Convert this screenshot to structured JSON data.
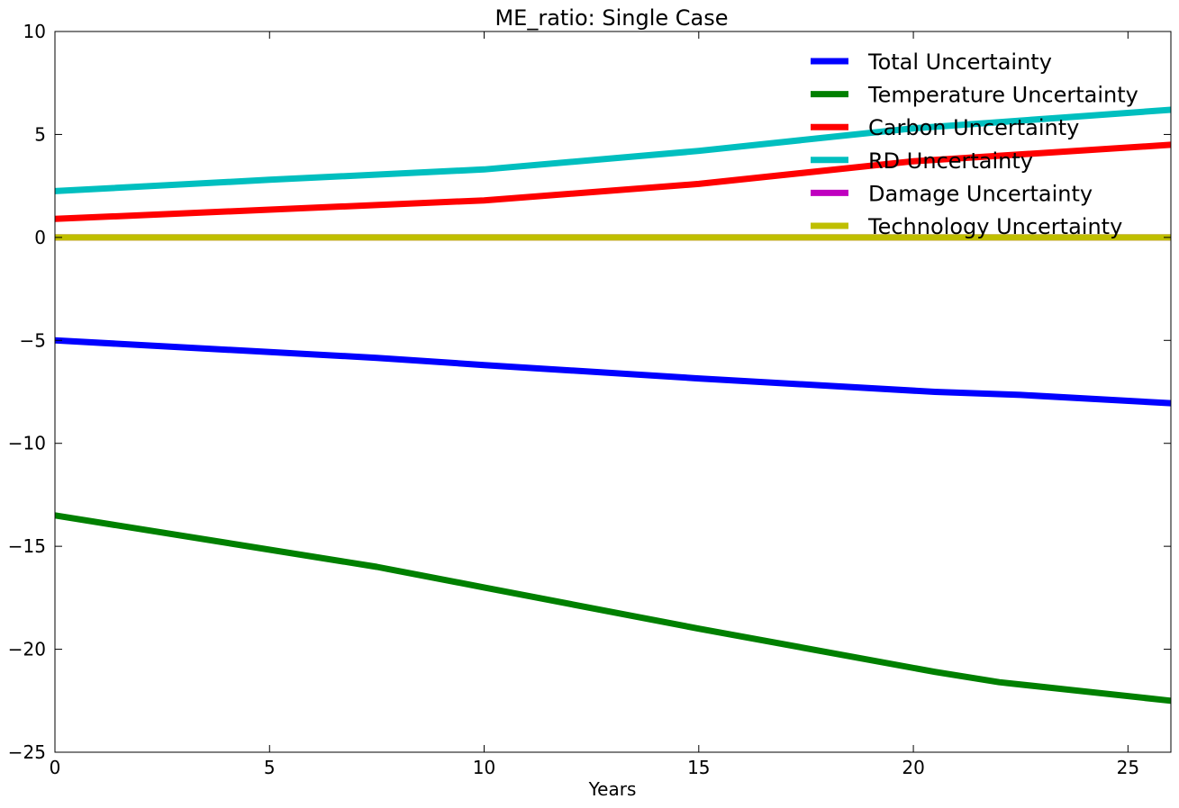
{
  "chart_data": {
    "type": "line",
    "title": "ME_ratio: Single Case",
    "xlabel": "Years",
    "ylabel": "",
    "xlim": [
      0,
      26
    ],
    "ylim": [
      -25,
      10
    ],
    "xticks": [
      0,
      5,
      10,
      15,
      20,
      25
    ],
    "yticks": [
      10,
      5,
      0,
      -5,
      -10,
      -15,
      -20,
      -25
    ],
    "xtick_labels": [
      "0",
      "5",
      "10",
      "15",
      "20",
      "25"
    ],
    "ytick_labels": [
      "10",
      "5",
      "0",
      "−5",
      "−10",
      "−15",
      "−20",
      "−25"
    ],
    "grid": false,
    "legend": {
      "position": "top-right",
      "frame": false
    },
    "series": [
      {
        "name": "Total Uncertainty",
        "color": "#0000ff",
        "x": [
          0,
          7.5,
          10,
          15,
          20.5,
          22.5,
          26
        ],
        "y": [
          -5,
          -5.85,
          -6.2,
          -6.85,
          -7.5,
          -7.65,
          -8.05
        ]
      },
      {
        "name": "Temperature Uncertainty",
        "color": "#008000",
        "x": [
          0,
          7.5,
          10,
          15,
          20.5,
          22,
          26
        ],
        "y": [
          -13.5,
          -16,
          -17,
          -19,
          -21.1,
          -21.6,
          -22.5
        ]
      },
      {
        "name": "Carbon Uncertainty",
        "color": "#ff0000",
        "x": [
          0,
          5,
          10,
          15,
          20,
          26
        ],
        "y": [
          0.9,
          1.35,
          1.8,
          2.6,
          3.7,
          4.5
        ]
      },
      {
        "name": "RD Uncertainty",
        "color": "#00bfbf",
        "x": [
          0,
          5,
          10,
          15,
          20,
          26
        ],
        "y": [
          2.25,
          2.8,
          3.3,
          4.2,
          5.3,
          6.2
        ]
      },
      {
        "name": "Damage Uncertainty",
        "color": "#bf00bf",
        "x": [
          0,
          26
        ],
        "y": [
          0,
          0
        ]
      },
      {
        "name": "Technology Uncertainty",
        "color": "#bfbf00",
        "x": [
          0,
          26
        ],
        "y": [
          0,
          0
        ]
      }
    ]
  }
}
